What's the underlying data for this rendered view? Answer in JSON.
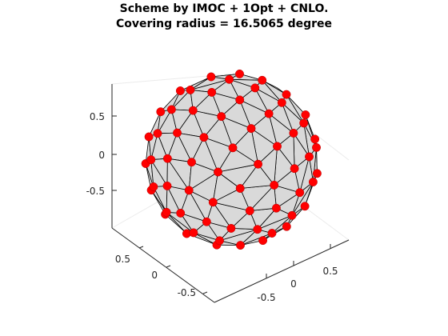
{
  "title": {
    "line1": "Scheme by IMOC + 1Opt + CNLO.",
    "line2": "Covering radius = 16.5065 degree"
  },
  "axes": {
    "z_ticks": [
      "0.5",
      "0",
      "-0.5"
    ],
    "y_ticks": [
      "0.5",
      "0",
      "-0.5"
    ],
    "x_ticks": [
      "-0.5",
      "0",
      "0.5"
    ]
  },
  "colors": {
    "sphere_fill": "#d9d9d9",
    "mesh_edge": "#000000",
    "point": "#ff0000",
    "axis": "#262626",
    "grid": "#ebebeb"
  },
  "scene": {
    "type": "spherical-point-cloud",
    "point_count": 110,
    "mesh": "triangulated convex hull"
  }
}
